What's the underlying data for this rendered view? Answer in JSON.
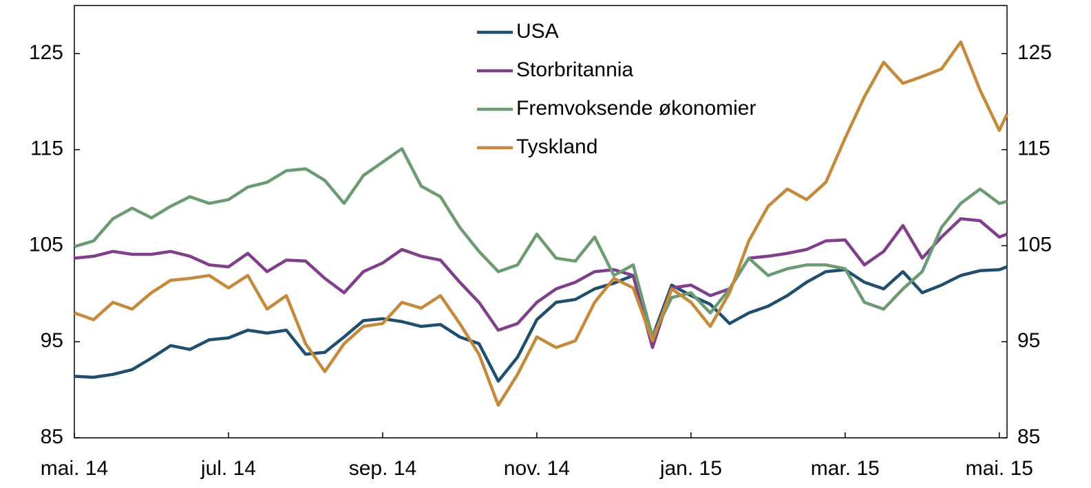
{
  "chart_data": {
    "type": "line",
    "x": [
      0,
      0.25,
      0.5,
      0.75,
      1,
      1.25,
      1.5,
      1.75,
      2,
      2.25,
      2.5,
      2.75,
      3,
      3.25,
      3.5,
      3.75,
      4,
      4.25,
      4.5,
      4.75,
      5,
      5.25,
      5.5,
      5.75,
      6,
      6.25,
      6.5,
      6.75,
      7,
      7.25,
      7.5,
      7.75,
      8,
      8.25,
      8.5,
      8.75,
      9,
      9.25,
      9.5,
      9.75,
      10,
      10.25,
      10.5,
      10.75,
      11,
      11.25,
      11.5,
      11.75,
      12,
      12.1
    ],
    "xlim": [
      0,
      12.1
    ],
    "xticks": [
      {
        "value": 0,
        "label": "mai. 14"
      },
      {
        "value": 2,
        "label": "jul. 14"
      },
      {
        "value": 4,
        "label": "sep. 14"
      },
      {
        "value": 6,
        "label": "nov. 14"
      },
      {
        "value": 8,
        "label": "jan. 15"
      },
      {
        "value": 10,
        "label": "mar. 15"
      },
      {
        "value": 12,
        "label": "mai. 15"
      }
    ],
    "ylim": [
      85,
      130
    ],
    "yticks": [
      85,
      95,
      105,
      115,
      125
    ],
    "y2lim": [
      85,
      130
    ],
    "y2ticks": [
      85,
      95,
      105,
      115,
      125
    ],
    "legend": "upper center",
    "series": [
      {
        "name": "USA",
        "color": "#1f4e6e",
        "values": [
          91.4,
          91.3,
          91.6,
          92.1,
          93.3,
          94.6,
          94.2,
          95.2,
          95.4,
          96.2,
          95.9,
          96.2,
          93.7,
          93.9,
          95.5,
          97.2,
          97.4,
          97.1,
          96.6,
          96.8,
          95.5,
          94.8,
          90.9,
          93.4,
          97.3,
          99.1,
          99.4,
          100.5,
          101.1,
          101.9,
          95.5,
          100.9,
          99.8,
          98.9,
          96.9,
          98.0,
          98.7,
          99.8,
          101.2,
          102.3,
          102.5,
          101.2,
          100.5,
          102.3,
          100.1,
          100.9,
          101.9,
          102.4,
          102.5,
          102.8
        ]
      },
      {
        "name": "Storbritannia",
        "color": "#7f3f8a",
        "values": [
          103.7,
          103.9,
          104.4,
          104.1,
          104.1,
          104.4,
          103.9,
          103.0,
          102.8,
          104.2,
          102.3,
          103.5,
          103.4,
          101.6,
          100.1,
          102.3,
          103.2,
          104.6,
          103.9,
          103.5,
          101.2,
          99.1,
          96.2,
          96.9,
          99.1,
          100.5,
          101.2,
          102.3,
          102.5,
          101.9,
          94.4,
          100.6,
          100.9,
          99.8,
          100.5,
          103.7,
          103.9,
          104.2,
          104.6,
          105.5,
          105.6,
          103.0,
          104.4,
          107.1,
          103.7,
          105.9,
          107.8,
          107.6,
          105.9,
          106.2
        ]
      },
      {
        "name": "Fremvoksende økonomier",
        "color": "#6b9b72",
        "values": [
          104.9,
          105.5,
          107.8,
          108.9,
          107.9,
          109.1,
          110.1,
          109.4,
          109.8,
          111.1,
          111.6,
          112.8,
          113.0,
          111.8,
          109.4,
          112.3,
          113.7,
          115.1,
          111.2,
          110.1,
          106.9,
          104.4,
          102.3,
          103.0,
          106.2,
          103.7,
          103.4,
          105.9,
          101.9,
          103.0,
          95.5,
          99.6,
          100.1,
          98.0,
          100.5,
          103.7,
          101.9,
          102.6,
          103.0,
          103.0,
          102.6,
          99.1,
          98.4,
          100.5,
          102.3,
          106.9,
          109.4,
          110.9,
          109.4,
          109.6
        ]
      },
      {
        "name": "Tyskland",
        "color": "#c4893a",
        "values": [
          98.0,
          97.3,
          99.1,
          98.4,
          100.1,
          101.4,
          101.6,
          101.9,
          100.6,
          101.9,
          98.4,
          99.8,
          94.8,
          91.9,
          94.8,
          96.6,
          96.9,
          99.1,
          98.5,
          99.8,
          96.9,
          93.7,
          88.4,
          91.6,
          95.5,
          94.4,
          95.1,
          99.1,
          101.6,
          100.6,
          95.1,
          100.5,
          99.1,
          96.6,
          100.1,
          105.5,
          109.1,
          110.9,
          109.8,
          111.6,
          116.2,
          120.5,
          124.1,
          121.9,
          122.6,
          123.4,
          126.2,
          121.2,
          117.0,
          118.7
        ]
      }
    ]
  }
}
